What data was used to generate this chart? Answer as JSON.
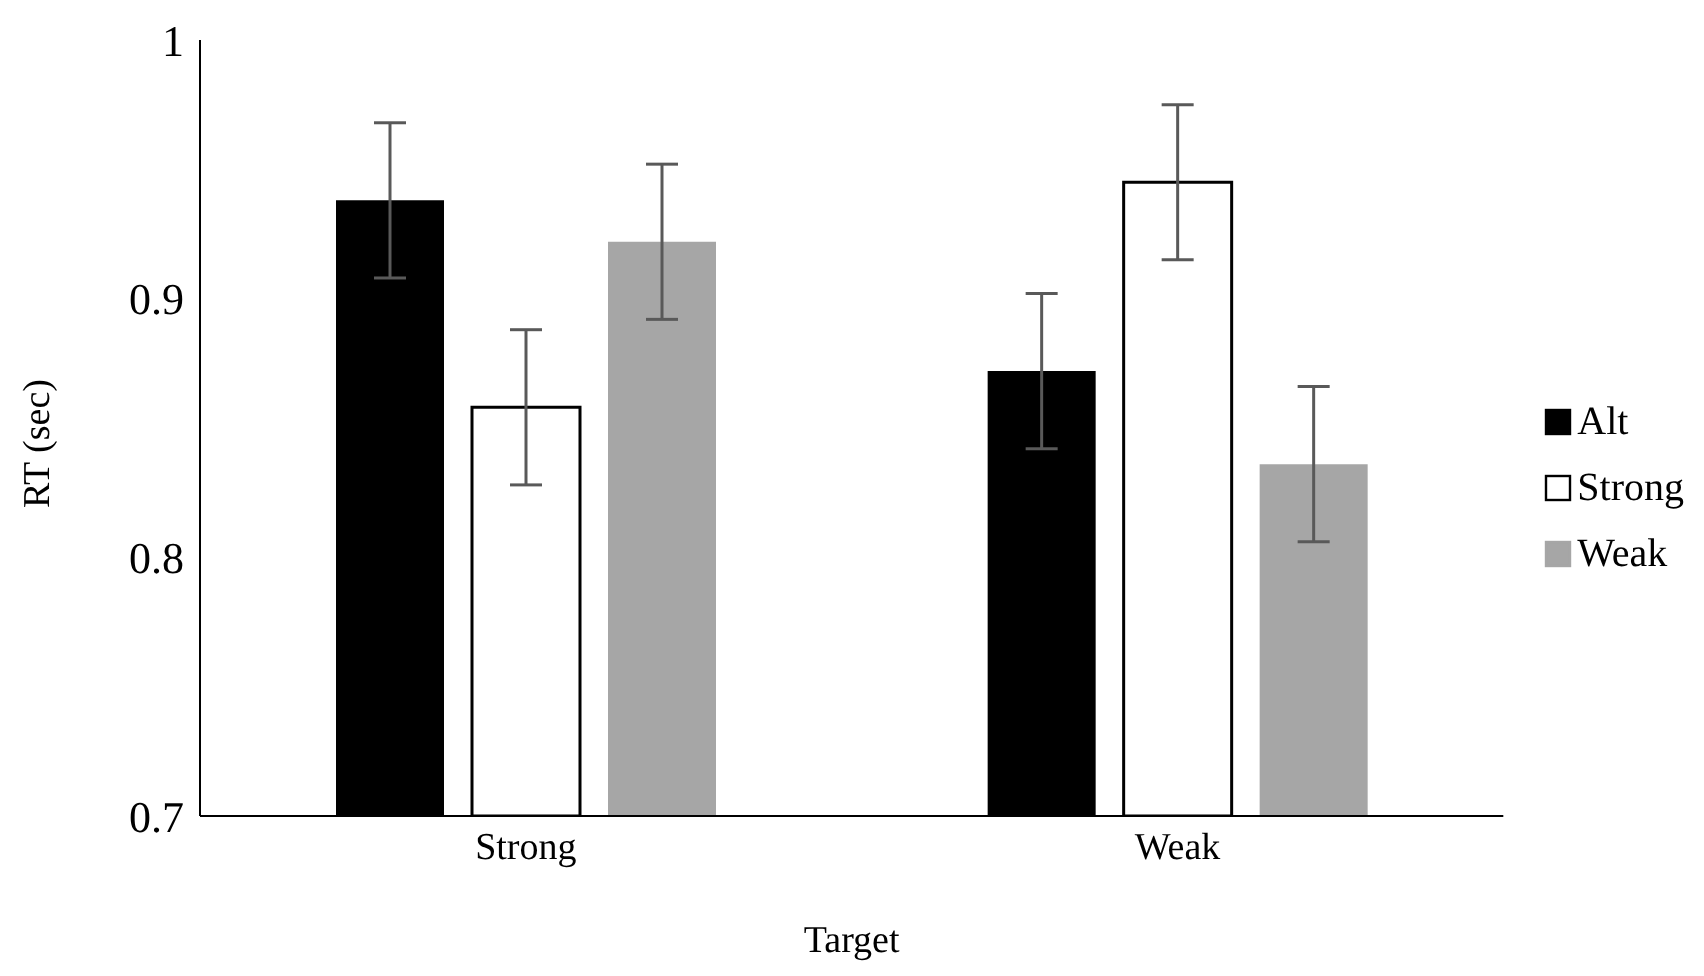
{
  "chart_data": {
    "type": "bar",
    "xlabel": "Target",
    "ylabel": "RT (sec)",
    "categories": [
      "Strong",
      "Weak"
    ],
    "series": [
      {
        "name": "Alt",
        "color": "#000000",
        "values": [
          0.938,
          0.872
        ],
        "errors": [
          0.03,
          0.03
        ]
      },
      {
        "name": "Strong",
        "color": "#ffffff",
        "values": [
          0.858,
          0.945
        ],
        "errors": [
          0.03,
          0.03
        ]
      },
      {
        "name": "Weak",
        "color": "#a6a6a6",
        "values": [
          0.922,
          0.836
        ],
        "errors": [
          0.03,
          0.03
        ]
      }
    ],
    "ylim": [
      0.7,
      1
    ],
    "yticks": [
      0.7,
      0.8,
      0.9,
      1
    ],
    "grid": false,
    "legend": "right"
  }
}
